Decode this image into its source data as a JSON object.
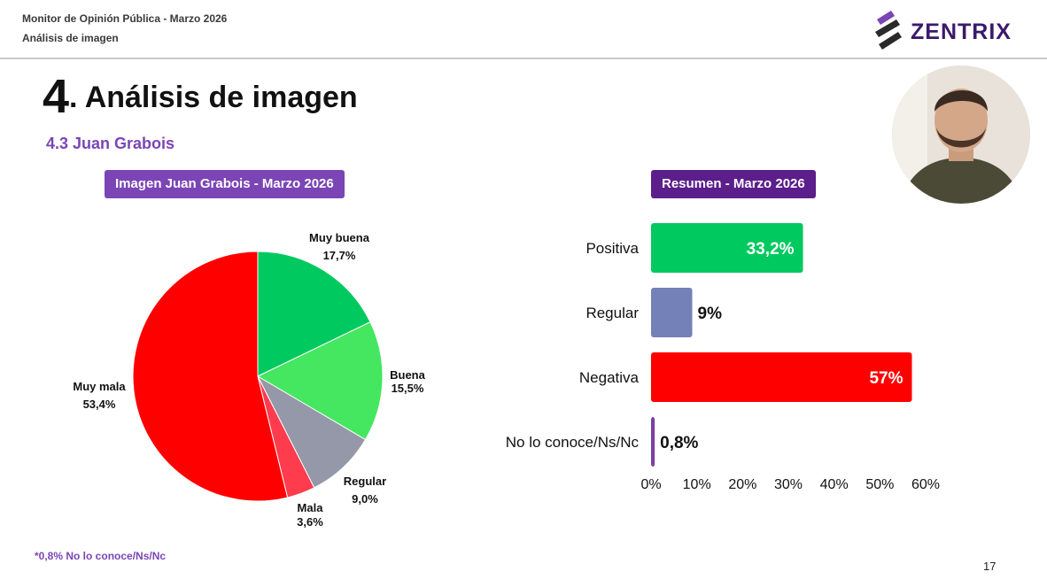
{
  "header": {
    "line1": "Monitor de Opinión Pública - Marzo 2026",
    "line2": "Análisis de imagen",
    "logo_text": "ZENTRIX"
  },
  "title": {
    "number": "4",
    "dot": ".",
    "text": "Análisis de imagen"
  },
  "subtitle": "4.3 Juan Grabois",
  "chart_data": [
    {
      "type": "pie",
      "title": "Imagen Juan Grabois - Marzo 2026",
      "slices": [
        {
          "label": "Muy buena",
          "value": 17.7,
          "value_label": "17,7%",
          "color": "#00c95f"
        },
        {
          "label": "Buena",
          "value": 15.5,
          "value_label": "15,5%",
          "color": "#45e660"
        },
        {
          "label": "Regular",
          "value": 9.0,
          "value_label": "9,0%",
          "color": "#9498a8"
        },
        {
          "label": "Mala",
          "value": 3.6,
          "value_label": "3,6%",
          "color": "#ff3b4e"
        },
        {
          "label": "Muy mala",
          "value": 53.4,
          "value_label": "53,4%",
          "color": "#ff0000"
        }
      ]
    },
    {
      "type": "bar",
      "orientation": "horizontal",
      "title": "Resumen - Marzo 2026",
      "categories": [
        "Positiva",
        "Regular",
        "Negativa",
        "No lo conoce/Ns/Nc"
      ],
      "values": [
        33.2,
        9,
        57,
        0.8
      ],
      "value_labels": [
        "33,2%",
        "9%",
        "57%",
        "0,8%"
      ],
      "colors": [
        "#00c95f",
        "#7480b8",
        "#ff0000",
        "#7b3fa6"
      ],
      "label_inside": [
        true,
        false,
        true,
        false
      ],
      "xlim": [
        0,
        60
      ],
      "xticks": [
        0,
        10,
        20,
        30,
        40,
        50,
        60
      ],
      "xtick_labels": [
        "0%",
        "10%",
        "20%",
        "30%",
        "40%",
        "50%",
        "60%"
      ]
    }
  ],
  "footnote": "*0,8% No lo conoce/Ns/Nc",
  "page_number": "17"
}
